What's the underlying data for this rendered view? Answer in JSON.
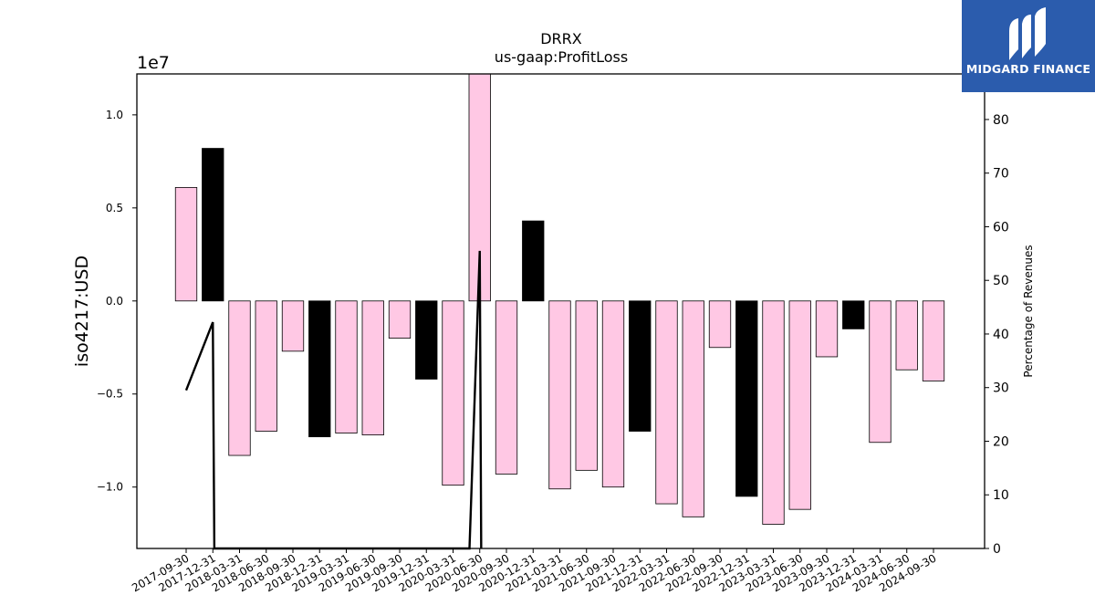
{
  "chart_data": {
    "type": "bar",
    "title": "DRRX",
    "subtitle": "us-gaap:ProfitLoss",
    "ylabel": "iso4217:USD",
    "y_offset_label": "1e7",
    "y2label": "Percentage of Revenues",
    "ylim": [
      -13300000,
      12200000
    ],
    "y2lim": [
      0,
      88.5
    ],
    "yticks": [
      {
        "value": 10000000,
        "label": "1.0"
      },
      {
        "value": 5000000,
        "label": "0.5"
      },
      {
        "value": 0,
        "label": "0.0"
      },
      {
        "value": -5000000,
        "label": "−0.5"
      },
      {
        "value": -10000000,
        "label": "−1.0"
      }
    ],
    "y2ticks": [
      0,
      10,
      20,
      30,
      40,
      50,
      60,
      70,
      80
    ],
    "categories": [
      "2017-09-30",
      "2017-12-31",
      "2018-03-31",
      "2018-06-30",
      "2018-09-30",
      "2018-12-31",
      "2019-03-31",
      "2019-06-30",
      "2019-09-30",
      "2019-12-31",
      "2020-03-31",
      "2020-06-30",
      "2020-09-30",
      "2020-12-31",
      "2021-03-31",
      "2021-06-30",
      "2021-09-30",
      "2021-12-31",
      "2022-03-31",
      "2022-06-30",
      "2022-09-30",
      "2022-12-31",
      "2023-03-31",
      "2023-06-30",
      "2023-09-30",
      "2023-12-31",
      "2024-03-31",
      "2024-06-30",
      "2024-09-30"
    ],
    "values": [
      6100000,
      8200000,
      -8300000,
      -7000000,
      -2700000,
      -7300000,
      -7100000,
      -7200000,
      -2000000,
      -4200000,
      -9900000,
      12200000,
      -9300000,
      4300000,
      -10100000,
      -9100000,
      -10000000,
      -7000000,
      -10900000,
      -11600000,
      -2500000,
      -10500000,
      -12000000,
      -11200000,
      -3000000,
      -1500000,
      -7600000,
      -3700000,
      -4300000
    ],
    "bar_colors": [
      "#ffc8e4",
      "#000000",
      "#ffc8e4",
      "#ffc8e4",
      "#ffc8e4",
      "#000000",
      "#ffc8e4",
      "#ffc8e4",
      "#ffc8e4",
      "#000000",
      "#ffc8e4",
      "#ffc8e4",
      "#ffc8e4",
      "#000000",
      "#ffc8e4",
      "#ffc8e4",
      "#ffc8e4",
      "#000000",
      "#ffc8e4",
      "#ffc8e4",
      "#ffc8e4",
      "#000000",
      "#ffc8e4",
      "#ffc8e4",
      "#ffc8e4",
      "#000000",
      "#ffc8e4",
      "#ffc8e4",
      "#ffc8e4"
    ],
    "line_series": {
      "axis": "right",
      "points": [
        {
          "x": "2017-09-30",
          "y": 29.5
        },
        {
          "x": "2017-12-31",
          "y": 42.2
        },
        {
          "x": "2018-01-05",
          "y": 0
        },
        {
          "x": "2020-05-26",
          "y": 0
        },
        {
          "x": "2020-06-30",
          "y": 55.5
        },
        {
          "x": "2020-07-05",
          "y": 0
        }
      ]
    },
    "grid": false,
    "legend": "none"
  },
  "logo": {
    "text": "MIDGARD FINANCE",
    "background": "#2b5cad"
  }
}
